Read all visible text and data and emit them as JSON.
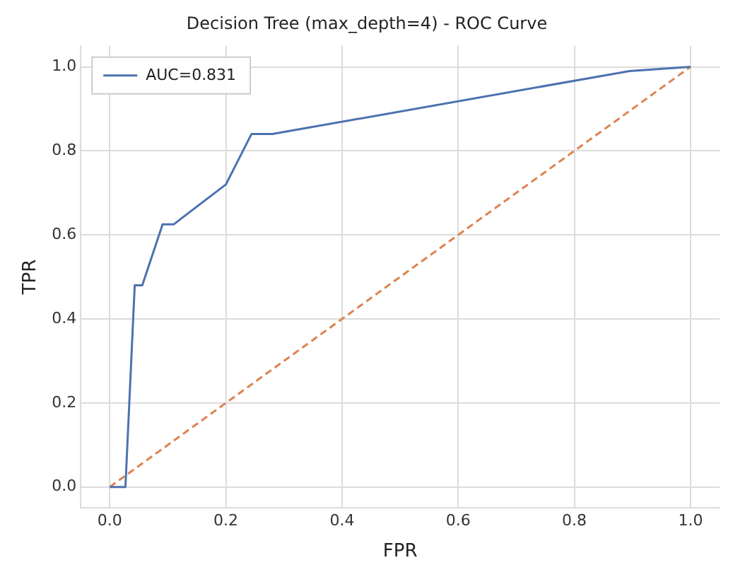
{
  "chart_data": {
    "type": "line",
    "title": "Decision Tree (max_depth=4) - ROC Curve",
    "xlabel": "FPR",
    "ylabel": "TPR",
    "series": [
      {
        "name": "AUC=0.831",
        "color": "#4c72b0",
        "x": [
          0,
          0.027,
          0.043,
          0.056,
          0.091,
          0.11,
          0.2,
          0.244,
          0.28,
          0.895,
          1
        ],
        "values": [
          0,
          0,
          0.48,
          0.48,
          0.625,
          0.625,
          0.72,
          0.84,
          0.84,
          0.99,
          1
        ],
        "line_style": "solid"
      },
      {
        "color": "#dd8452",
        "x": [
          0,
          1
        ],
        "values": [
          0,
          1
        ],
        "line_style": "dashed"
      }
    ],
    "xlim": [
      -0.05,
      1.05
    ],
    "ylim": [
      -0.05,
      1.05
    ],
    "xticks": [
      {
        "value": 0,
        "label": "0.0"
      },
      {
        "value": 0.2,
        "label": "0.2"
      },
      {
        "value": 0.4,
        "label": "0.4"
      },
      {
        "value": 0.6,
        "label": "0.6"
      },
      {
        "value": 0.8,
        "label": "0.8"
      },
      {
        "value": 1,
        "label": "1.0"
      }
    ],
    "yticks": [
      {
        "value": 0,
        "label": "0.0"
      },
      {
        "value": 0.2,
        "label": "0.2"
      },
      {
        "value": 0.4,
        "label": "0.4"
      },
      {
        "value": 0.6,
        "label": "0.6"
      },
      {
        "value": 0.8,
        "label": "0.8"
      },
      {
        "value": 1,
        "label": "1.0"
      }
    ],
    "grid": true,
    "legend": "top left",
    "marker": "none"
  }
}
